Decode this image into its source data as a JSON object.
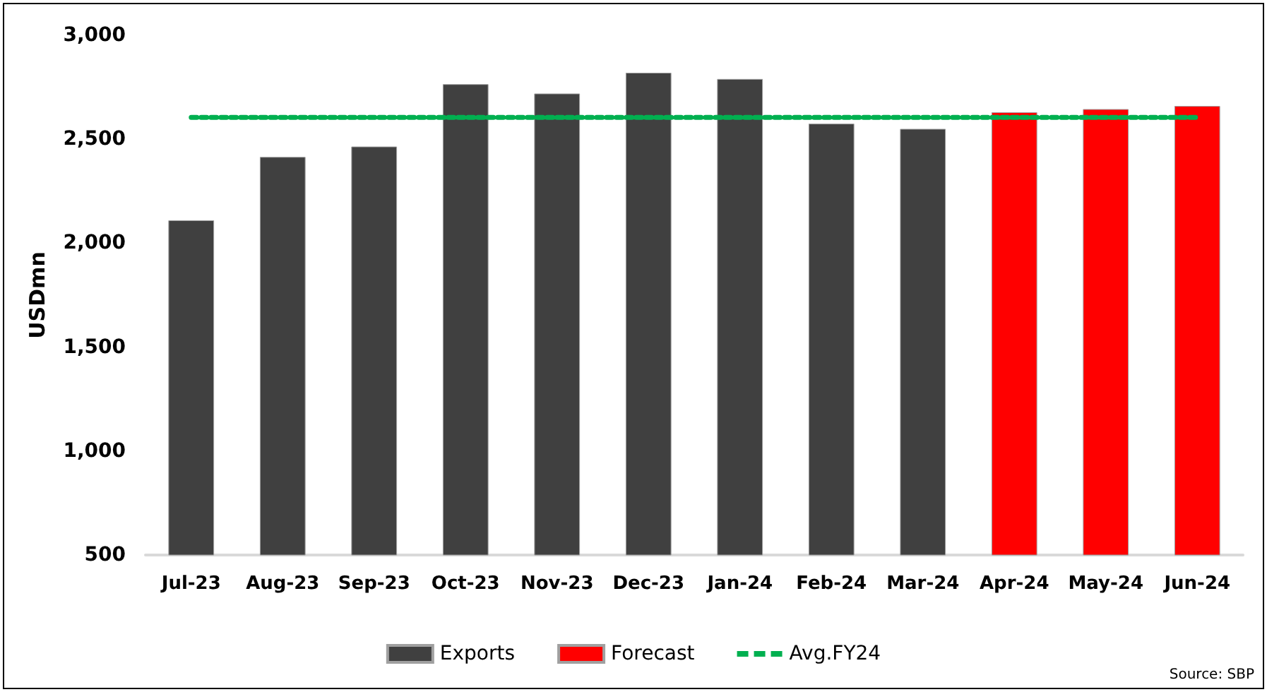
{
  "chart_data": {
    "type": "bar",
    "ylabel": "USDmn",
    "categories": [
      "Jul-23",
      "Aug-23",
      "Sep-23",
      "Oct-23",
      "Nov-23",
      "Dec-23",
      "Jan-24",
      "Feb-24",
      "Mar-24",
      "Apr-24",
      "May-24",
      "Jun-24"
    ],
    "series": [
      {
        "name": "Exports",
        "color": "#404040",
        "values": [
          2110,
          2415,
          2465,
          2765,
          2720,
          2820,
          2790,
          2575,
          2550,
          null,
          null,
          null
        ]
      },
      {
        "name": "Forecast",
        "color": "#ff0000",
        "values": [
          null,
          null,
          null,
          null,
          null,
          null,
          null,
          null,
          null,
          2630,
          2645,
          2660
        ]
      },
      {
        "name": "Avg.FY24",
        "type": "line",
        "color": "#00b050",
        "line_style": "dashed",
        "marker": "none",
        "values": [
          2605,
          2605,
          2605,
          2605,
          2605,
          2605,
          2605,
          2605,
          2605,
          2605,
          2605,
          2605
        ]
      }
    ],
    "ylim": [
      500,
      3000
    ],
    "yticks": [
      {
        "value": 500,
        "label": "500"
      },
      {
        "value": 1000,
        "label": "1,000"
      },
      {
        "value": 1500,
        "label": "1,500"
      },
      {
        "value": 2000,
        "label": "2,000"
      },
      {
        "value": 2500,
        "label": "2,500"
      },
      {
        "value": 3000,
        "label": "3,000"
      }
    ],
    "grid": false,
    "legend": "bottom",
    "annotations": [
      "Source: SBP"
    ]
  }
}
